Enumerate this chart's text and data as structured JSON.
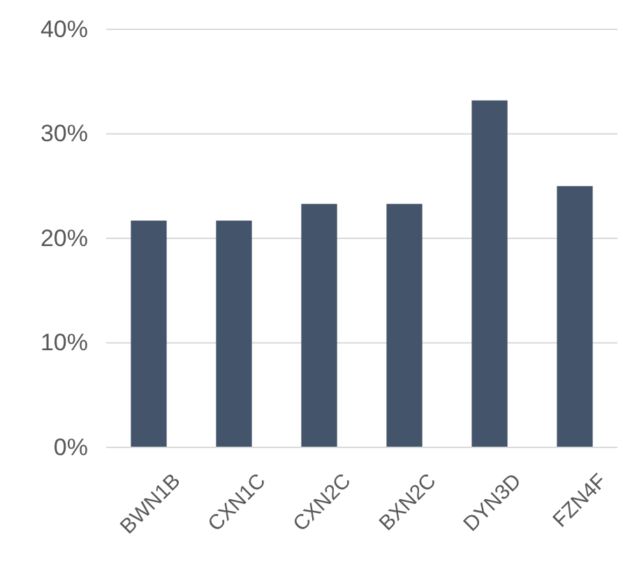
{
  "chart_data": {
    "type": "bar",
    "categories": [
      "BWN1B",
      "CXN1C",
      "CXN2C",
      "BXN2C",
      "DYN3D",
      "FZN4F"
    ],
    "values": [
      21.7,
      21.7,
      23.3,
      23.3,
      33.2,
      25.0
    ],
    "color": "#44546a",
    "ylim": [
      0,
      40
    ],
    "yticks": [
      {
        "value": 0,
        "label": "0%"
      },
      {
        "value": 10,
        "label": "10%"
      },
      {
        "value": 20,
        "label": "20%"
      },
      {
        "value": 30,
        "label": "30%"
      },
      {
        "value": 40,
        "label": "40%"
      }
    ],
    "grid": true
  }
}
